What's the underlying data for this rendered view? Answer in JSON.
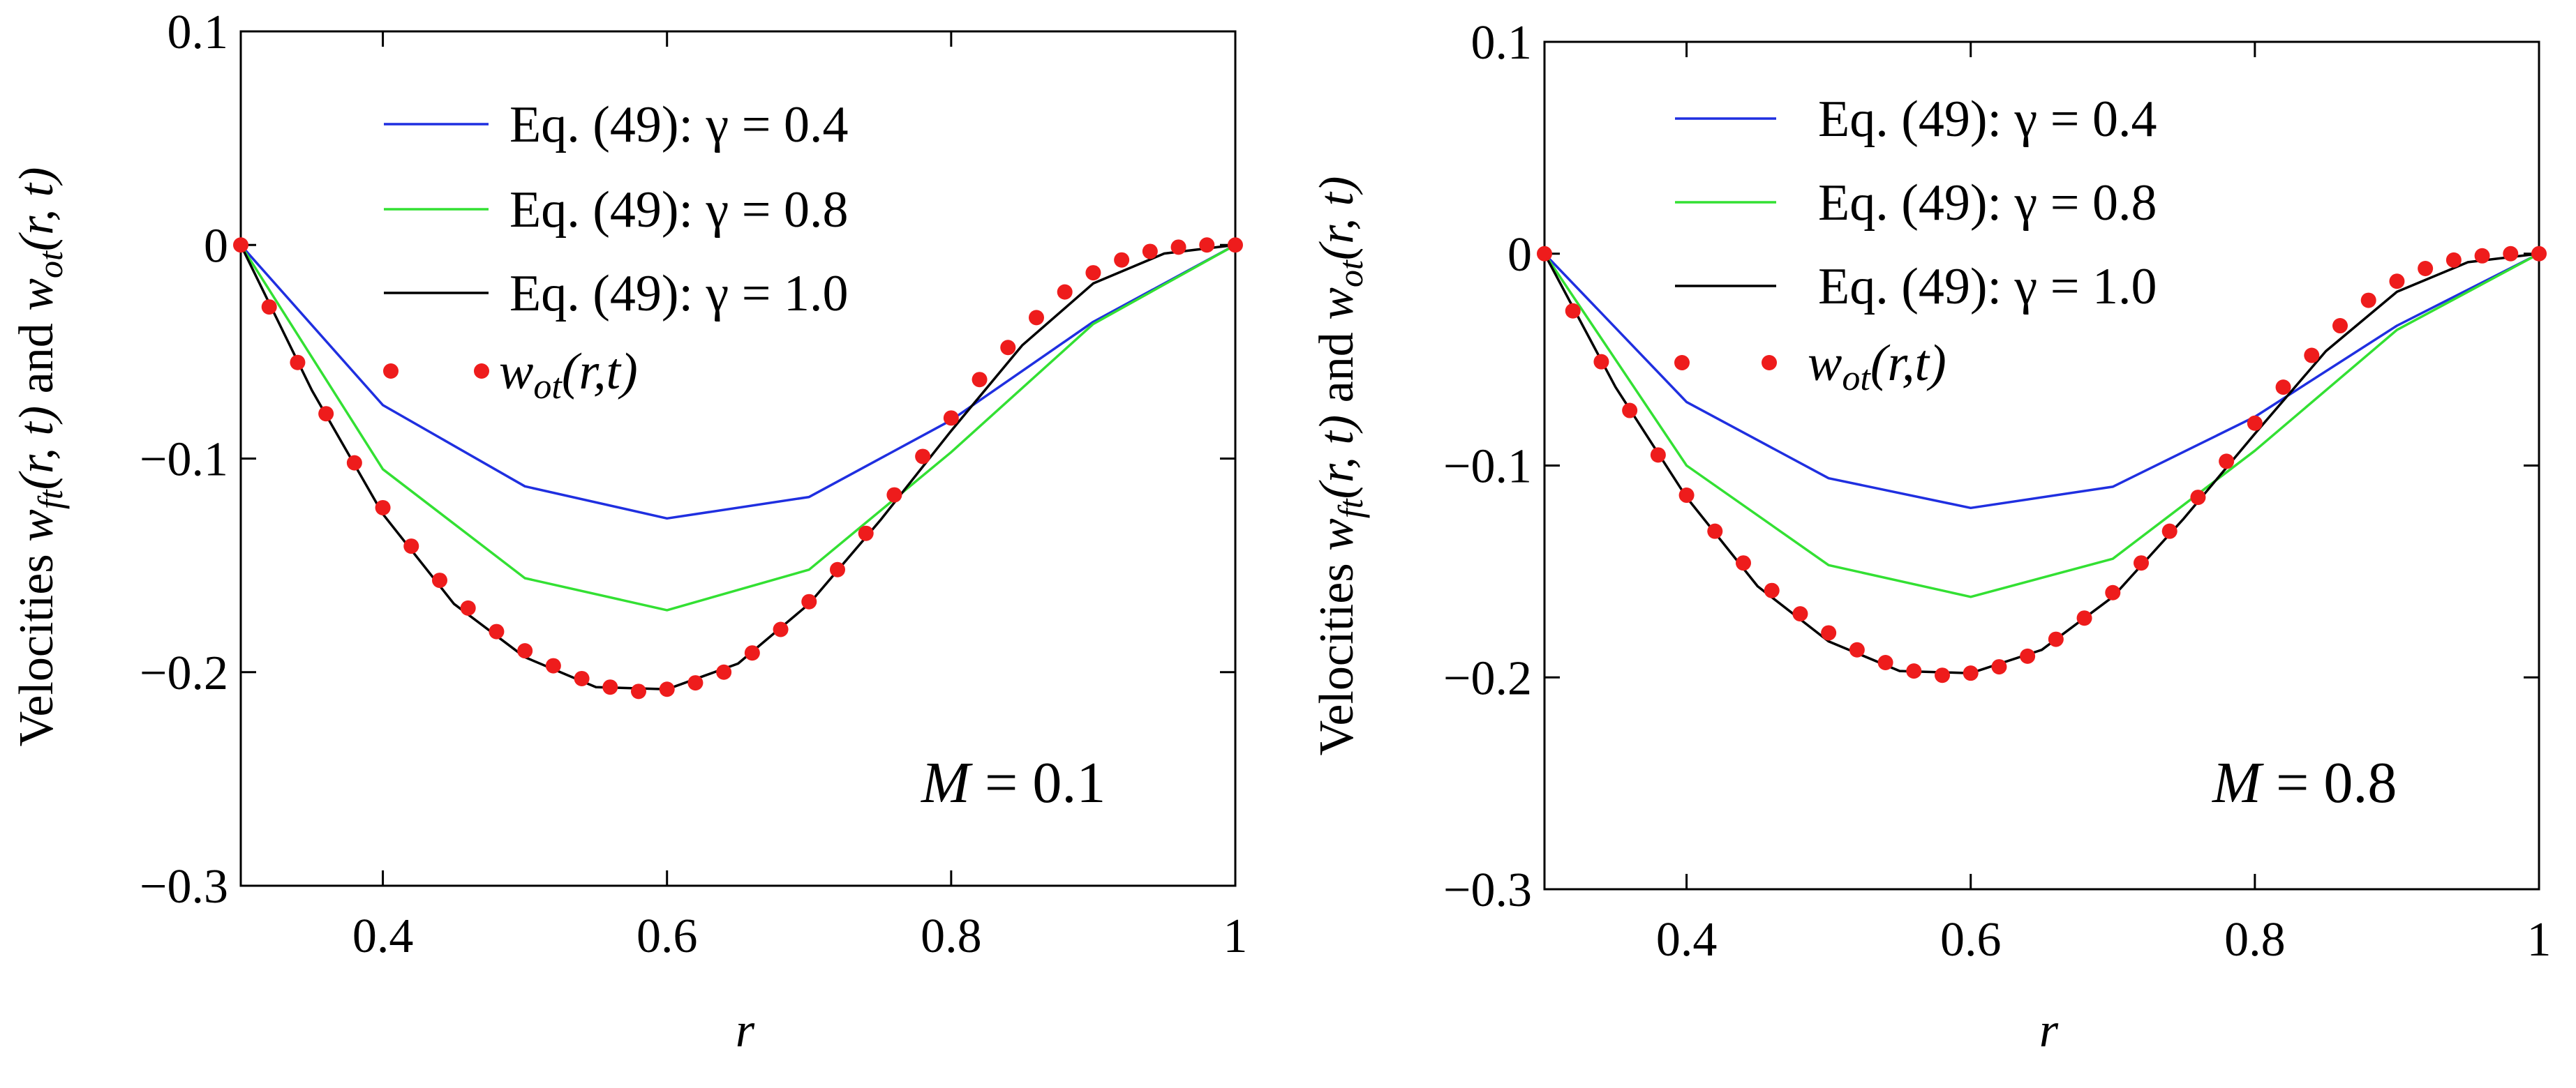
{
  "chart_data": [
    {
      "type": "line",
      "xlabel": "r",
      "ylabel": "Velocities w_ft(r, t) and w_ot(r, t)",
      "xlim": [
        0.3,
        1.0
      ],
      "ylim": [
        -0.3,
        0.1
      ],
      "x_ticks": [
        0.4,
        0.6,
        0.8,
        1
      ],
      "x_tick_labels": [
        "0.4",
        "0.6",
        "0.8",
        "1"
      ],
      "y_ticks": [
        0.1,
        0,
        -0.1,
        -0.2,
        -0.3
      ],
      "y_tick_labels": [
        "0.1",
        "0",
        "−0.1",
        "−0.2",
        "−0.3"
      ],
      "grid": false,
      "legend_position": "top",
      "annotation": {
        "symbol": "M",
        "text": " = 0.1"
      },
      "series": [
        {
          "name": "Eq. (49): γ = 0.4",
          "color": "#1f2fe0",
          "style": "line",
          "x": [
            0.3,
            0.4,
            0.5,
            0.6,
            0.7,
            0.8,
            0.9,
            1.0
          ],
          "y": [
            0,
            -0.075,
            -0.113,
            -0.128,
            -0.118,
            -0.082,
            -0.036,
            0
          ]
        },
        {
          "name": "Eq. (49): γ = 0.8",
          "color": "#33e033",
          "style": "line",
          "x": [
            0.3,
            0.4,
            0.5,
            0.6,
            0.7,
            0.8,
            0.9,
            1.0
          ],
          "y": [
            0,
            -0.105,
            -0.156,
            -0.171,
            -0.152,
            -0.097,
            -0.037,
            0
          ]
        },
        {
          "name": "Eq. (49): γ = 1.0",
          "color": "#000000",
          "style": "line",
          "x": [
            0.3,
            0.35,
            0.4,
            0.45,
            0.5,
            0.55,
            0.6,
            0.65,
            0.7,
            0.75,
            0.8,
            0.85,
            0.9,
            0.95,
            1.0
          ],
          "y": [
            0,
            -0.068,
            -0.126,
            -0.168,
            -0.193,
            -0.207,
            -0.208,
            -0.196,
            -0.168,
            -0.129,
            -0.087,
            -0.047,
            -0.018,
            -0.004,
            0
          ]
        },
        {
          "name": "w_ot(r,t)",
          "color": "#ee1c1c",
          "style": "markers",
          "x": [
            0.3,
            0.32,
            0.34,
            0.36,
            0.38,
            0.4,
            0.42,
            0.44,
            0.46,
            0.48,
            0.5,
            0.52,
            0.54,
            0.56,
            0.58,
            0.6,
            0.62,
            0.64,
            0.66,
            0.68,
            0.7,
            0.72,
            0.74,
            0.76,
            0.78,
            0.8,
            0.82,
            0.84,
            0.86,
            0.88,
            0.9,
            0.92,
            0.94,
            0.96,
            0.98,
            1.0
          ],
          "y": [
            0,
            -0.029,
            -0.055,
            -0.079,
            -0.102,
            -0.123,
            -0.141,
            -0.157,
            -0.17,
            -0.181,
            -0.19,
            -0.197,
            -0.203,
            -0.207,
            -0.209,
            -0.208,
            -0.205,
            -0.2,
            -0.191,
            -0.18,
            -0.167,
            -0.152,
            -0.135,
            -0.117,
            -0.099,
            -0.081,
            -0.063,
            -0.048,
            -0.034,
            -0.022,
            -0.013,
            -0.007,
            -0.003,
            -0.001,
            0,
            0
          ]
        }
      ],
      "ylabel_parts": {
        "prefix": "Velocities ",
        "w1": "w",
        "s1": "ft",
        "a1": "(r, t)",
        "mid": " and ",
        "w2": "w",
        "s2": "ot",
        "a2": "(r, t)"
      },
      "legend_marker_label": {
        "w": "w",
        "sub": "ot",
        "args": "(r,t)"
      }
    },
    {
      "type": "line",
      "xlabel": "r",
      "ylabel": "Velocities w_ft(r, t) and w_ot(r, t)",
      "xlim": [
        0.3,
        1.0
      ],
      "ylim": [
        -0.3,
        0.1
      ],
      "x_ticks": [
        0.4,
        0.6,
        0.8,
        1
      ],
      "x_tick_labels": [
        "0.4",
        "0.6",
        "0.8",
        "1"
      ],
      "y_ticks": [
        0.1,
        0,
        -0.1,
        -0.2,
        -0.3
      ],
      "y_tick_labels": [
        "0.1",
        "0",
        "−0.1",
        "−0.2",
        "−0.3"
      ],
      "grid": false,
      "legend_position": "top",
      "annotation": {
        "symbol": "M",
        "text": " = 0.8"
      },
      "series": [
        {
          "name": "Eq. (49): γ = 0.4",
          "color": "#1f2fe0",
          "style": "line",
          "x": [
            0.3,
            0.4,
            0.5,
            0.6,
            0.7,
            0.8,
            0.9,
            1.0
          ],
          "y": [
            0,
            -0.07,
            -0.106,
            -0.12,
            -0.11,
            -0.077,
            -0.034,
            0
          ]
        },
        {
          "name": "Eq. (49): γ = 0.8",
          "color": "#33e033",
          "style": "line",
          "x": [
            0.3,
            0.4,
            0.5,
            0.6,
            0.7,
            0.8,
            0.9,
            1.0
          ],
          "y": [
            0,
            -0.1,
            -0.147,
            -0.162,
            -0.144,
            -0.093,
            -0.036,
            0
          ]
        },
        {
          "name": "Eq. (49): γ = 1.0",
          "color": "#000000",
          "style": "line",
          "x": [
            0.3,
            0.35,
            0.4,
            0.45,
            0.5,
            0.55,
            0.6,
            0.65,
            0.7,
            0.75,
            0.8,
            0.85,
            0.9,
            0.95,
            1.0
          ],
          "y": [
            0,
            -0.063,
            -0.115,
            -0.157,
            -0.183,
            -0.197,
            -0.198,
            -0.187,
            -0.162,
            -0.125,
            -0.085,
            -0.046,
            -0.018,
            -0.004,
            0
          ]
        },
        {
          "name": "w_ot(r,t)",
          "color": "#ee1c1c",
          "style": "markers",
          "x": [
            0.3,
            0.32,
            0.34,
            0.36,
            0.38,
            0.4,
            0.42,
            0.44,
            0.46,
            0.48,
            0.5,
            0.52,
            0.54,
            0.56,
            0.58,
            0.6,
            0.62,
            0.64,
            0.66,
            0.68,
            0.7,
            0.72,
            0.74,
            0.76,
            0.78,
            0.8,
            0.82,
            0.84,
            0.86,
            0.88,
            0.9,
            0.92,
            0.94,
            0.96,
            0.98,
            1.0
          ],
          "y": [
            0,
            -0.027,
            -0.051,
            -0.074,
            -0.095,
            -0.114,
            -0.131,
            -0.146,
            -0.159,
            -0.17,
            -0.179,
            -0.187,
            -0.193,
            -0.197,
            -0.199,
            -0.198,
            -0.195,
            -0.19,
            -0.182,
            -0.172,
            -0.16,
            -0.146,
            -0.131,
            -0.115,
            -0.098,
            -0.08,
            -0.063,
            -0.048,
            -0.034,
            -0.022,
            -0.013,
            -0.007,
            -0.003,
            -0.001,
            0,
            0
          ]
        }
      ],
      "ylabel_parts": {
        "prefix": "Velocities ",
        "w1": "w",
        "s1": "ft",
        "a1": "(r, t)",
        "mid": " and ",
        "w2": "w",
        "s2": "ot",
        "a2": "(r, t)"
      },
      "legend_marker_label": {
        "w": "w",
        "sub": "ot",
        "args": "(r,t)"
      }
    }
  ]
}
